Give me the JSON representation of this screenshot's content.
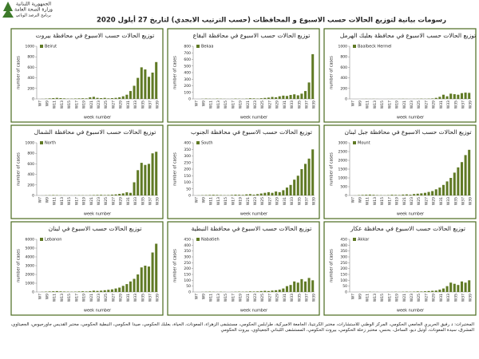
{
  "header": {
    "org": [
      "الجمهورية اللبنانية",
      "وزارة الصحة العامة",
      "برنامج الترصد الوبائي"
    ],
    "title": "رسومات بيانية لتوزيع الحالات حسب الاسبوع و المحافظات (حسب الترتيب الابجدي) لتاريخ 27 أيلول 2020"
  },
  "footer": "المختبرات: د رفيق الحريري الجامعي الحكومي، المركز الوطني للاستشارات، مختبر الكرنتينا، الجامعة الأميركية، طرابلس الحكومي، مستشفى الزهراء، المعونات، الحياة، بعلبك الحكومي، صيدا الحكومي، النبطية الحكومي، مختبر القديس جاورجيوس، الجعيتاوي، المشرق، سيدة المعونات، أوتيل ديو، الساحل، بحنس، مختبر زحلة الحكومي، بيروت الحكومي، المستشفى اللبناني الجعيتاوي، بيروت الحكومي",
  "chart_data": [
    {
      "type": "bar",
      "title": "توزيع الحالات حسب الاسبوع في محافظة بيروت",
      "x_label": "week number",
      "y_label": "number of cases",
      "categories": [
        "W7",
        null,
        "W9",
        null,
        "W11",
        null,
        "W13",
        null,
        "W15",
        null,
        "W17",
        null,
        "W19",
        null,
        "W21",
        null,
        "W23",
        null,
        "W25",
        null,
        "W27",
        null,
        "W29",
        null,
        "W31",
        null,
        "W33",
        null,
        "W35",
        null,
        "W37",
        null,
        "W39"
      ],
      "series": [
        {
          "name": "Beirut",
          "color": "#607a25",
          "values": [
            0,
            2,
            5,
            10,
            15,
            20,
            15,
            10,
            5,
            5,
            8,
            10,
            12,
            10,
            30,
            40,
            20,
            15,
            20,
            10,
            15,
            20,
            30,
            50,
            80,
            150,
            250,
            400,
            600,
            560,
            420,
            500,
            700
          ]
        }
      ],
      "ylim": [
        0,
        1000
      ],
      "yticks": [
        0,
        200,
        400,
        600,
        800,
        1000
      ]
    },
    {
      "type": "bar",
      "title": "توزيع الحالات حسب الاسبوع في محافظة البقاع",
      "x_label": "week number",
      "y_label": "number of cases",
      "categories": [
        "W7",
        null,
        "W9",
        null,
        "W11",
        null,
        "W13",
        null,
        "W15",
        null,
        "W17",
        null,
        "W19",
        null,
        "W21",
        null,
        "W23",
        null,
        "W25",
        null,
        "W27",
        null,
        "W29",
        null,
        "W31",
        null,
        "W33",
        null,
        "W35",
        null,
        "W37",
        null,
        "W39"
      ],
      "series": [
        {
          "name": "Bekaa",
          "color": "#607a25",
          "values": [
            0,
            0,
            2,
            5,
            3,
            2,
            5,
            3,
            2,
            1,
            2,
            5,
            3,
            2,
            5,
            10,
            8,
            5,
            10,
            15,
            20,
            30,
            25,
            40,
            50,
            45,
            60,
            70,
            55,
            80,
            120,
            250,
            680
          ]
        }
      ],
      "ylim": [
        0,
        800
      ],
      "yticks": [
        0,
        100,
        200,
        300,
        400,
        500,
        600,
        700,
        800
      ]
    },
    {
      "type": "bar",
      "title": "توزيع الحالات حسب الاسبوع في محافظة بعلبك الهرمل",
      "x_label": "week number",
      "y_label": "number of cases",
      "categories": [
        "W7",
        null,
        "W9",
        null,
        "W11",
        null,
        "W13",
        null,
        "W15",
        null,
        "W17",
        null,
        "W19",
        null,
        "W21",
        null,
        "W23",
        null,
        "W25",
        null,
        "W27",
        null,
        "W29",
        null,
        "W31",
        null,
        "W33",
        null,
        "W35",
        null,
        "W37",
        null,
        "W39"
      ],
      "series": [
        {
          "name": "Baalbeck Hermel",
          "color": "#607a25",
          "values": [
            0,
            0,
            0,
            1,
            2,
            1,
            2,
            1,
            0,
            0,
            1,
            2,
            1,
            2,
            3,
            2,
            1,
            2,
            3,
            5,
            3,
            5,
            8,
            20,
            40,
            80,
            50,
            100,
            90,
            80,
            110,
            120,
            115
          ]
        }
      ],
      "ylim": [
        0,
        1000
      ],
      "yticks": [
        0,
        200,
        400,
        600,
        800,
        1000
      ]
    },
    {
      "type": "bar",
      "title": "توزيع الحالات حسب الاسبوع في محافظة الشمال",
      "x_label": "week number",
      "y_label": "number of cases",
      "categories": [
        "W7",
        null,
        "W9",
        null,
        "W11",
        null,
        "W13",
        null,
        "W15",
        null,
        "W17",
        null,
        "W19",
        null,
        "W21",
        null,
        "W23",
        null,
        "W25",
        null,
        "W27",
        null,
        "W29",
        null,
        "W31",
        null,
        "W33",
        null,
        "W35",
        null,
        "W37",
        null,
        "W39"
      ],
      "series": [
        {
          "name": "North",
          "color": "#607a25",
          "values": [
            0,
            1,
            3,
            5,
            8,
            6,
            4,
            3,
            2,
            2,
            3,
            5,
            4,
            3,
            5,
            8,
            10,
            12,
            8,
            10,
            15,
            20,
            30,
            40,
            60,
            50,
            250,
            480,
            620,
            580,
            600,
            800,
            830
          ]
        }
      ],
      "ylim": [
        0,
        1000
      ],
      "yticks": [
        0,
        200,
        400,
        600,
        800,
        1000
      ]
    },
    {
      "type": "bar",
      "title": "توزيع الحالات حسب الاسبوع في محافظة الجنوب",
      "x_label": "week number",
      "y_label": "number of cases",
      "categories": [
        "W7",
        null,
        "W9",
        null,
        "W11",
        null,
        "W13",
        null,
        "W15",
        null,
        "W17",
        null,
        "W19",
        null,
        "W21",
        null,
        "W23",
        null,
        "W25",
        null,
        "W27",
        null,
        "W29",
        null,
        "W31",
        null,
        "W33",
        null,
        "W35",
        null,
        "W37",
        null,
        "W39"
      ],
      "series": [
        {
          "name": "South",
          "color": "#607a25",
          "values": [
            0,
            1,
            2,
            3,
            4,
            5,
            4,
            3,
            2,
            2,
            4,
            6,
            5,
            4,
            8,
            10,
            6,
            10,
            15,
            20,
            25,
            20,
            30,
            25,
            40,
            60,
            80,
            120,
            150,
            200,
            240,
            280,
            350
          ]
        }
      ],
      "ylim": [
        0,
        400
      ],
      "yticks": [
        0,
        50,
        100,
        150,
        200,
        250,
        300,
        350,
        400
      ]
    },
    {
      "type": "bar",
      "title": "توزيع الحالات حسب الاسبوع في محافظة جبل لبنان",
      "x_label": "week number",
      "y_label": "number of cases",
      "categories": [
        "W7",
        null,
        "W9",
        null,
        "W11",
        null,
        "W13",
        null,
        "W15",
        null,
        "W17",
        null,
        "W19",
        null,
        "W21",
        null,
        "W23",
        null,
        "W25",
        null,
        "W27",
        null,
        "W29",
        null,
        "W31",
        null,
        "W33",
        null,
        "W35",
        null,
        "W37",
        null,
        "W39"
      ],
      "series": [
        {
          "name": "Mount",
          "color": "#607a25",
          "values": [
            0,
            5,
            20,
            30,
            40,
            50,
            35,
            20,
            15,
            10,
            20,
            40,
            30,
            25,
            50,
            60,
            40,
            80,
            100,
            120,
            150,
            200,
            250,
            350,
            450,
            600,
            800,
            1000,
            1300,
            1600,
            1900,
            2300,
            2600
          ]
        }
      ],
      "ylim": [
        0,
        3000
      ],
      "yticks": [
        0,
        500,
        1000,
        1500,
        2000,
        2500,
        3000
      ]
    },
    {
      "type": "bar",
      "title": "توزيع الحالات حسب الاسبوع في لبنان",
      "x_label": "week number",
      "y_label": "number of cases",
      "categories": [
        "W7",
        null,
        "W9",
        null,
        "W11",
        null,
        "W13",
        null,
        "W15",
        null,
        "W17",
        null,
        "W19",
        null,
        "W21",
        null,
        "W23",
        null,
        "W25",
        null,
        "W27",
        null,
        "W29",
        null,
        "W31",
        null,
        "W33",
        null,
        "W35",
        null,
        "W37",
        null,
        "W39"
      ],
      "series": [
        {
          "name": "Lebanon",
          "color": "#607a25",
          "values": [
            0,
            20,
            40,
            60,
            80,
            100,
            70,
            50,
            40,
            30,
            40,
            60,
            80,
            60,
            100,
            150,
            120,
            150,
            200,
            250,
            300,
            400,
            500,
            700,
            900,
            1200,
            1500,
            2000,
            2800,
            3000,
            2900,
            4500,
            5500
          ]
        }
      ],
      "ylim": [
        0,
        6000
      ],
      "yticks": [
        0,
        1000,
        2000,
        3000,
        4000,
        5000,
        6000
      ]
    },
    {
      "type": "bar",
      "title": "توزيع الحالات حسب الاسبوع في محافظة النبطية",
      "x_label": "week number",
      "y_label": "number of cases",
      "categories": [
        "W7",
        null,
        "W9",
        null,
        "W11",
        null,
        "W13",
        null,
        "W15",
        null,
        "W17",
        null,
        "W19",
        null,
        "W21",
        null,
        "W23",
        null,
        "W25",
        null,
        "W27",
        null,
        "W29",
        null,
        "W31",
        null,
        "W33",
        null,
        "W35",
        null,
        "W37",
        null,
        "W39"
      ],
      "series": [
        {
          "name": "Nabatieh",
          "color": "#607a25",
          "values": [
            0,
            0,
            1,
            2,
            3,
            2,
            1,
            2,
            1,
            0,
            1,
            2,
            3,
            2,
            3,
            5,
            4,
            5,
            8,
            10,
            8,
            12,
            15,
            20,
            30,
            50,
            60,
            90,
            80,
            110,
            90,
            120,
            100
          ]
        }
      ],
      "ylim": [
        0,
        450
      ],
      "yticks": [
        0,
        50,
        100,
        150,
        200,
        250,
        300,
        350,
        400,
        450
      ]
    },
    {
      "type": "bar",
      "title": "توزيع الحالات حسب الاسبوع في محافظة عكار",
      "x_label": "week number",
      "y_label": "number of cases",
      "categories": [
        "W7",
        null,
        "W9",
        null,
        "W11",
        null,
        "W13",
        null,
        "W15",
        null,
        "W17",
        null,
        "W19",
        null,
        "W21",
        null,
        "W23",
        null,
        "W25",
        null,
        "W27",
        null,
        "W29",
        null,
        "W31",
        null,
        "W33",
        null,
        "W35",
        null,
        "W37",
        null,
        "W39"
      ],
      "series": [
        {
          "name": "Akkar",
          "color": "#607a25",
          "values": [
            0,
            0,
            0,
            1,
            1,
            2,
            1,
            1,
            0,
            0,
            1,
            1,
            2,
            1,
            2,
            3,
            2,
            3,
            5,
            4,
            6,
            8,
            10,
            12,
            20,
            30,
            50,
            80,
            70,
            60,
            90,
            80,
            100
          ]
        }
      ],
      "ylim": [
        0,
        450
      ],
      "yticks": [
        0,
        50,
        100,
        150,
        200,
        250,
        300,
        350,
        400,
        450
      ]
    }
  ]
}
